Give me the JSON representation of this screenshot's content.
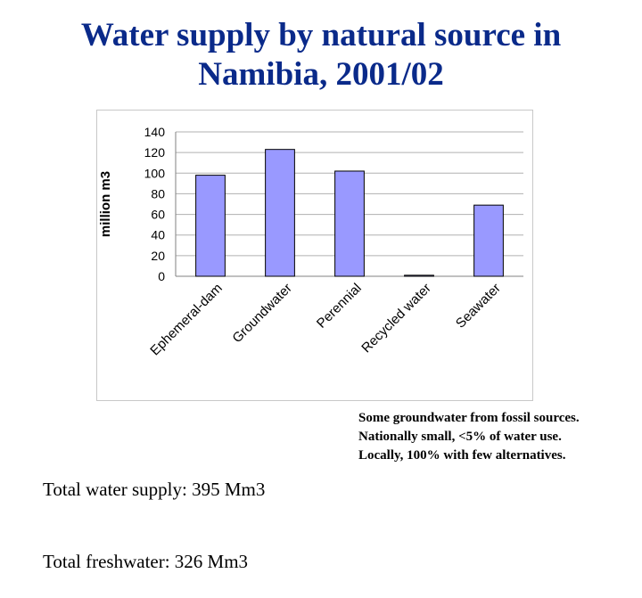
{
  "title_line1": "Water supply by natural source in",
  "title_line2": "Namibia, 2001/02",
  "chart_data": {
    "type": "bar",
    "title": "",
    "xlabel": "",
    "ylabel": "million m3",
    "categories": [
      "Ephemeral-dam",
      "Groundwater",
      "Perennial",
      "Recycled water",
      "Seawater"
    ],
    "values": [
      98,
      123,
      102,
      1,
      69
    ],
    "ylim": [
      0,
      140
    ],
    "yticks": [
      0,
      20,
      40,
      60,
      80,
      100,
      120,
      140
    ],
    "grid": true,
    "bar_color": "#9999ff"
  },
  "totals": {
    "supply": "Total water supply: 395 Mm3",
    "fresh": "Total freshwater:    326 Mm3"
  },
  "note": {
    "line1": "Some groundwater from fossil sources.",
    "line2": "Nationally small, <5% of water use.",
    "line3": "Locally, 100% with few alternatives."
  }
}
